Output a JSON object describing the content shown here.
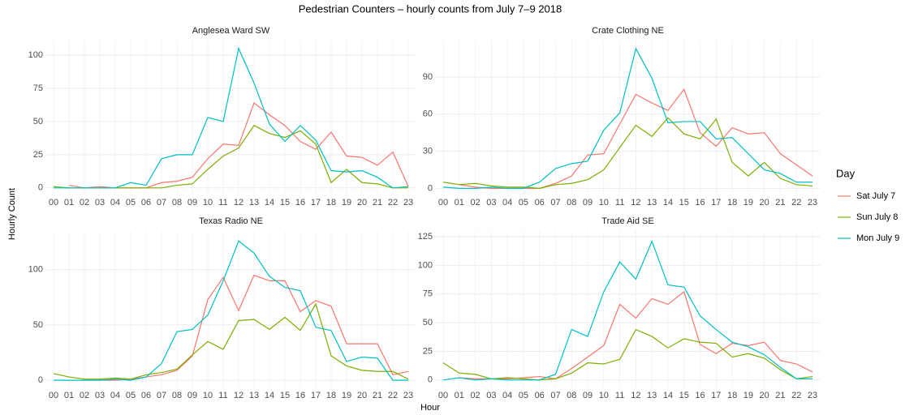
{
  "title": "Pedestrian Counters – hourly counts from July 7–9 2018",
  "xlabel": "Hour",
  "ylabel": "Hourly Count",
  "legend_title": "Day",
  "chart_data": [
    {
      "type": "line",
      "title": "Anglesea Ward SW",
      "categories": [
        "00",
        "01",
        "02",
        "03",
        "04",
        "05",
        "06",
        "07",
        "08",
        "09",
        "10",
        "11",
        "12",
        "13",
        "14",
        "15",
        "16",
        "17",
        "18",
        "19",
        "20",
        "21",
        "22",
        "23"
      ],
      "ylim": [
        -5,
        111
      ],
      "yticks": [
        0,
        25,
        50,
        75,
        100
      ],
      "grid": true,
      "series": [
        {
          "name": "Sat July 7",
          "color": "#F8766D",
          "values": [
            null,
            2,
            0,
            1,
            0,
            0,
            0,
            4,
            5,
            8,
            22,
            33,
            32,
            64,
            55,
            47,
            35,
            29,
            42,
            24,
            23,
            17,
            27,
            1
          ]
        },
        {
          "name": "Sun July 8",
          "color": "#7CAE00",
          "values": [
            1,
            0,
            0,
            0,
            0,
            0,
            0,
            0,
            2,
            3,
            14,
            24,
            30,
            47,
            41,
            38,
            43,
            33,
            4,
            14,
            4,
            3,
            0,
            0
          ]
        },
        {
          "name": "Mon July 9",
          "color": "#00BFC4",
          "values": [
            0,
            0,
            0,
            0,
            0,
            4,
            2,
            22,
            25,
            25,
            53,
            50,
            105,
            79,
            48,
            35,
            47,
            36,
            13,
            12,
            13,
            8,
            0,
            1
          ]
        }
      ]
    },
    {
      "type": "line",
      "title": "Crate Clothing NE",
      "categories": [
        "00",
        "01",
        "02",
        "03",
        "04",
        "05",
        "06",
        "07",
        "08",
        "09",
        "10",
        "11",
        "12",
        "13",
        "14",
        "15",
        "16",
        "17",
        "18",
        "19",
        "20",
        "21",
        "22",
        "23"
      ],
      "ylim": [
        -5,
        119.5
      ],
      "yticks": [
        0,
        30,
        60,
        90
      ],
      "grid": true,
      "series": [
        {
          "values": [
            null,
            3,
            1,
            0,
            0,
            0,
            0,
            4,
            10,
            27,
            28,
            52,
            76,
            69,
            63,
            80,
            45,
            34,
            49,
            44,
            45,
            28,
            19,
            10
          ]
        },
        {
          "values": [
            5,
            3,
            4,
            2,
            1,
            1,
            0,
            3,
            4,
            7,
            15,
            33,
            51,
            42,
            57,
            44,
            40,
            56,
            21,
            10,
            21,
            8,
            3,
            2
          ]
        },
        {
          "values": [
            1,
            0,
            0,
            1,
            0,
            0,
            5,
            16,
            20,
            22,
            47,
            61,
            113,
            89,
            53,
            54,
            54,
            40,
            41,
            28,
            15,
            12,
            5,
            5
          ]
        }
      ]
    },
    {
      "type": "line",
      "title": "Texas Radio NE",
      "categories": [
        "00",
        "01",
        "02",
        "03",
        "04",
        "05",
        "06",
        "07",
        "08",
        "09",
        "10",
        "11",
        "12",
        "13",
        "14",
        "15",
        "16",
        "17",
        "18",
        "19",
        "20",
        "21",
        "22",
        "23"
      ],
      "ylim": [
        -6.5,
        135
      ],
      "yticks": [
        0,
        50,
        100
      ],
      "grid": true,
      "series": [
        {
          "values": [
            null,
            null,
            null,
            0,
            0,
            1,
            3,
            5,
            9,
            22,
            73,
            93,
            63,
            95,
            90,
            90,
            62,
            72,
            67,
            33,
            33,
            33,
            5,
            8
          ]
        },
        {
          "values": [
            6,
            3,
            1,
            1,
            2,
            1,
            5,
            7,
            10,
            23,
            35,
            28,
            54,
            55,
            46,
            57,
            45,
            69,
            22,
            13,
            9,
            8,
            8,
            1
          ]
        },
        {
          "values": [
            0,
            0,
            0,
            0,
            1,
            0,
            3,
            15,
            44,
            46,
            59,
            90,
            126,
            115,
            94,
            84,
            81,
            48,
            45,
            17,
            21,
            20,
            0,
            0
          ]
        }
      ]
    },
    {
      "type": "line",
      "title": "Trade Aid SE",
      "categories": [
        "00",
        "01",
        "02",
        "03",
        "04",
        "05",
        "06",
        "07",
        "08",
        "09",
        "10",
        "11",
        "12",
        "13",
        "14",
        "15",
        "16",
        "17",
        "18",
        "19",
        "20",
        "21",
        "22",
        "23"
      ],
      "ylim": [
        -6.5,
        130
      ],
      "yticks": [
        0,
        25,
        50,
        75,
        100,
        125
      ],
      "grid": true,
      "series": [
        {
          "values": [
            null,
            2,
            1,
            1,
            1,
            2,
            3,
            1,
            10,
            20,
            30,
            66,
            54,
            71,
            66,
            77,
            31,
            23,
            32,
            30,
            33,
            17,
            14,
            7
          ]
        },
        {
          "values": [
            15,
            6,
            5,
            1,
            2,
            1,
            0,
            1,
            6,
            15,
            14,
            18,
            44,
            38,
            28,
            36,
            33,
            32,
            20,
            23,
            19,
            9,
            1,
            3
          ]
        },
        {
          "values": [
            0,
            2,
            0,
            1,
            0,
            0,
            0,
            5,
            44,
            38,
            77,
            103,
            88,
            121,
            83,
            81,
            56,
            44,
            33,
            29,
            22,
            11,
            1,
            1
          ]
        }
      ]
    }
  ]
}
